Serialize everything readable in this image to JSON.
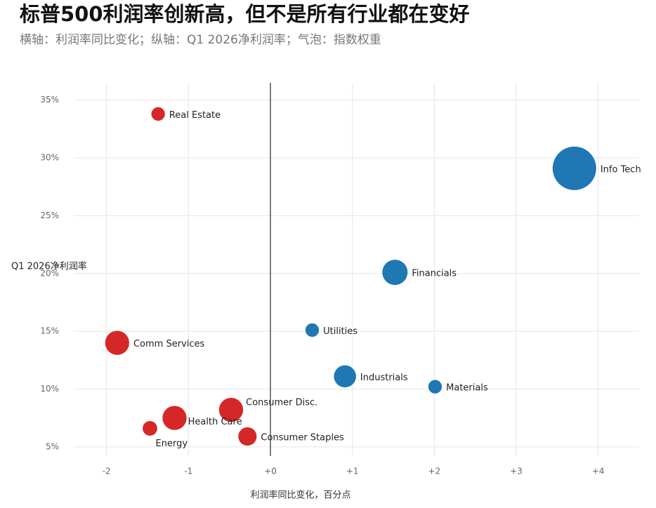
{
  "chart_data": {
    "type": "scatter",
    "title": "标普500利润率创新高，但不是所有行业都在变好",
    "subtitle": "横轴：利润率同比变化；纵轴：Q1 2026净利润率；气泡：指数权重",
    "x_label": "利润率同比变化，百分点",
    "y_label": "Q1 2026净利润率",
    "labels": [
      "Real Estate",
      "Info Tech",
      "Financials",
      "Utilities",
      "Comm Services",
      "Industrials",
      "Materials",
      "Consumer Disc.",
      "Health Care",
      "Energy",
      "Consumer Staples"
    ],
    "x": [
      -1.37,
      3.71,
      1.52,
      0.51,
      -1.87,
      0.91,
      2.01,
      -0.48,
      -1.17,
      -1.47,
      -0.28
    ],
    "values": [
      33.8,
      29.1,
      20.1,
      15.1,
      14.0,
      11.1,
      10.2,
      8.2,
      7.5,
      6.6,
      5.9
    ],
    "sizes": [
      3,
      31,
      10.5,
      3,
      9.5,
      8,
      3,
      9.5,
      9.5,
      3.5,
      5.5
    ],
    "colors": [
      "#d62728",
      "#1f77b4",
      "#1f77b4",
      "#1f77b4",
      "#d62728",
      "#1f77b4",
      "#1f77b4",
      "#d62728",
      "#d62728",
      "#d62728",
      "#d62728"
    ],
    "xlim": [
      -2.4,
      4.5
    ],
    "ylim": [
      4.2,
      36.5
    ],
    "xticks": [
      -2,
      -1,
      {
        "value": 0,
        "label": "+0"
      },
      {
        "value": 1,
        "label": "+1"
      },
      {
        "value": 2,
        "label": "+2"
      },
      {
        "value": 3,
        "label": "+3"
      },
      {
        "value": 4,
        "label": "+4"
      }
    ],
    "yticks": [
      {
        "value": 5,
        "label": "5%"
      },
      {
        "value": 10,
        "label": "10%"
      },
      {
        "value": 15,
        "label": "15%"
      },
      {
        "value": 20,
        "label": "20%"
      },
      {
        "value": 25,
        "label": "25%"
      },
      {
        "value": 30,
        "label": "30%"
      },
      {
        "value": 35,
        "label": "35%"
      }
    ],
    "grid": true
  }
}
